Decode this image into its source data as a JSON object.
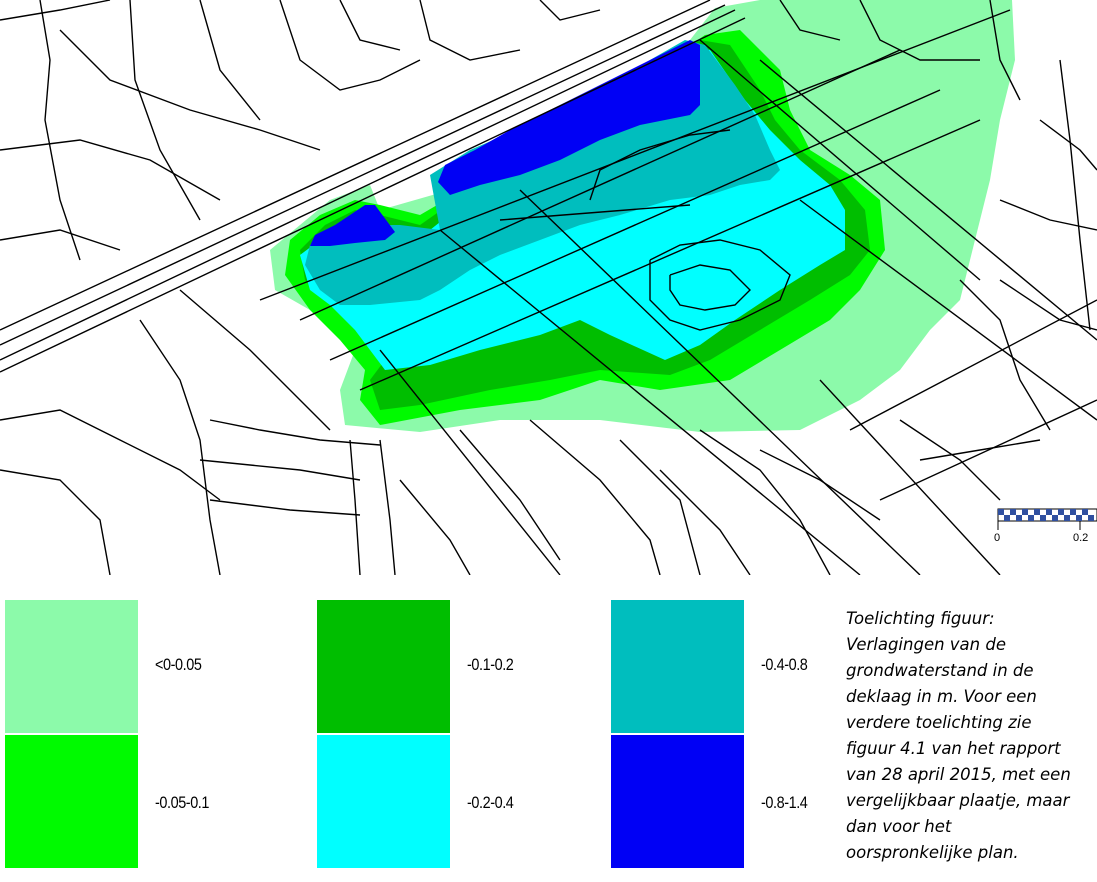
{
  "legend": {
    "items": [
      {
        "label": "<0-0.05",
        "color": "#8cfaaa"
      },
      {
        "label": "-0.05-0.1",
        "color": "#00fa00"
      },
      {
        "label": "-0.1-0.2",
        "color": "#00be00"
      },
      {
        "label": "-0.2-0.4",
        "color": "#00ffff"
      },
      {
        "label": "-0.4-0.8",
        "color": "#00bebe"
      },
      {
        "label": "-0.8-1.4",
        "color": "#0000f5"
      }
    ]
  },
  "caption": {
    "text": "Toelichting figuur:\nVerlagingen van de\ngrondwaterstand in de\ndeklaag in m. Voor een\nverdere toelichting zie\nfiguur 4.1 van het rapport\nvan 28 april 2015, met een\nvergelijkbaar plaatje, maar\ndan voor het\noorspronkelijke plan."
  },
  "scalebar": {
    "label_start": "0",
    "label_end": "0.2"
  }
}
